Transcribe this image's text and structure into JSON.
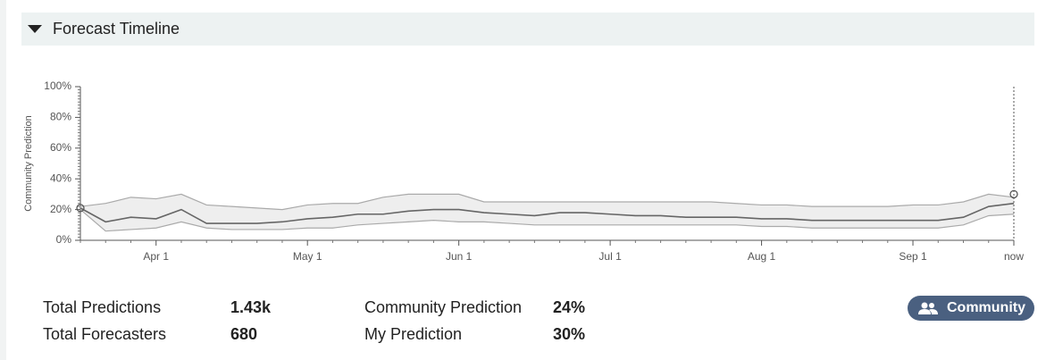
{
  "header": {
    "title": "Forecast Timeline"
  },
  "chart_data": {
    "type": "line",
    "ylabel": "Community Prediction",
    "categories": [
      null,
      null,
      null,
      "Apr 1",
      null,
      null,
      null,
      null,
      null,
      "May 1",
      null,
      null,
      null,
      null,
      null,
      "Jun 1",
      null,
      null,
      null,
      null,
      null,
      "Jul 1",
      null,
      null,
      null,
      null,
      null,
      "Aug 1",
      null,
      null,
      null,
      null,
      null,
      "Sep 1",
      null,
      null,
      null,
      "now"
    ],
    "median": [
      21,
      12,
      15,
      14,
      20,
      11,
      11,
      11,
      12,
      14,
      15,
      17,
      17,
      19,
      20,
      20,
      18,
      17,
      16,
      18,
      18,
      17,
      16,
      16,
      15,
      15,
      15,
      14,
      14,
      13,
      13,
      13,
      13,
      13,
      13,
      15,
      22,
      24
    ],
    "lower": [
      20,
      6,
      7,
      8,
      12,
      8,
      7,
      7,
      7,
      8,
      8,
      10,
      11,
      12,
      13,
      12,
      12,
      11,
      10,
      10,
      10,
      10,
      10,
      10,
      10,
      10,
      10,
      9,
      9,
      8,
      8,
      8,
      8,
      8,
      8,
      10,
      16,
      17
    ],
    "upper": [
      22,
      24,
      28,
      27,
      30,
      23,
      22,
      21,
      20,
      23,
      24,
      24,
      28,
      30,
      30,
      30,
      25,
      25,
      25,
      25,
      25,
      25,
      25,
      25,
      25,
      25,
      24,
      23,
      23,
      22,
      22,
      22,
      22,
      23,
      23,
      25,
      30,
      28
    ],
    "my_predictions": [
      21,
      null,
      null,
      null,
      null,
      null,
      null,
      null,
      null,
      null,
      null,
      null,
      null,
      null,
      null,
      null,
      null,
      null,
      null,
      null,
      null,
      null,
      null,
      null,
      null,
      null,
      null,
      null,
      null,
      null,
      null,
      null,
      null,
      null,
      null,
      null,
      null,
      30
    ],
    "median_color": "#666666",
    "band_color": "#aaaaaa",
    "band_fill": "#eeeeee",
    "ylim": [
      0,
      100
    ],
    "yticks": [
      {
        "value": 0,
        "label": "0%"
      },
      {
        "value": 20,
        "label": "20%"
      },
      {
        "value": 40,
        "label": "40%"
      },
      {
        "value": 60,
        "label": "60%"
      },
      {
        "value": 80,
        "label": "80%"
      },
      {
        "value": 100,
        "label": "100%"
      }
    ]
  },
  "stats": [
    {
      "label": "Total Predictions",
      "value": "1.43k"
    },
    {
      "label": "Total Forecasters",
      "value": "680"
    },
    {
      "label": "Community Prediction",
      "value": "24%"
    },
    {
      "label": "My Prediction",
      "value": "30%"
    }
  ],
  "button": "Community"
}
